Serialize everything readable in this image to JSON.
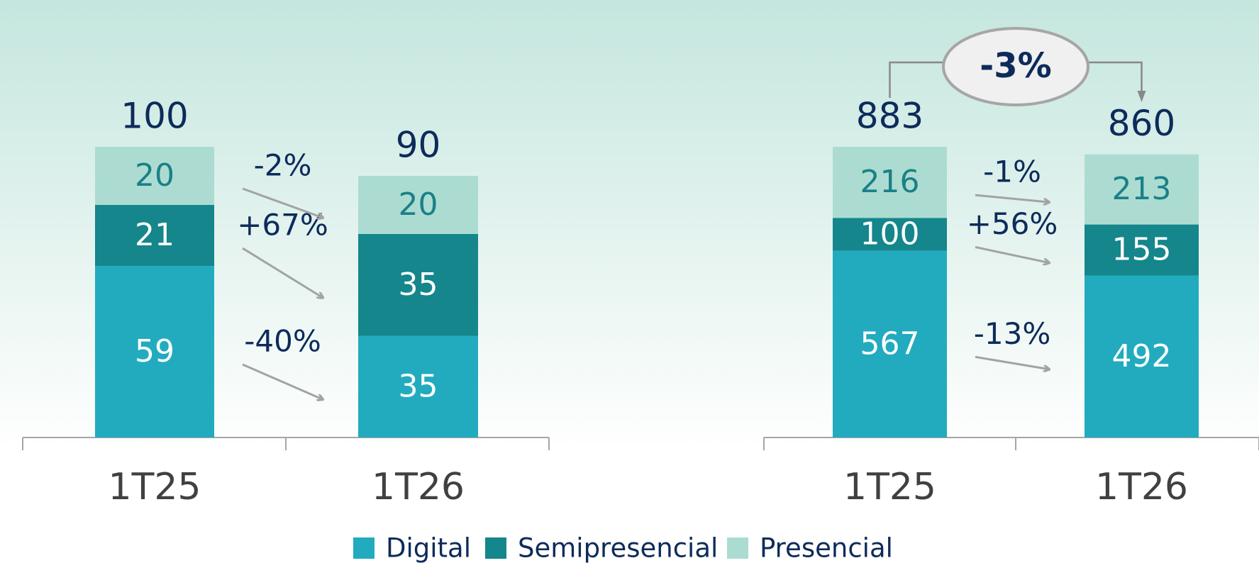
{
  "chart_data": [
    {
      "type": "bar",
      "stacked": true,
      "categories": [
        "1T25",
        "1T26"
      ],
      "series": [
        {
          "name": "Digital",
          "color": "#22abbf",
          "values": [
            59,
            35
          ]
        },
        {
          "name": "Semipresencial",
          "color": "#14868c",
          "values": [
            21,
            35
          ]
        },
        {
          "name": "Presencial",
          "color": "#acdcd1",
          "values": [
            20,
            20
          ]
        }
      ],
      "totals": [
        100,
        90
      ],
      "changes": [
        "-40%",
        "+67%",
        "-2%"
      ]
    },
    {
      "type": "bar",
      "stacked": true,
      "categories": [
        "1T25",
        "1T26"
      ],
      "series": [
        {
          "color": "#22abbf",
          "values": [
            567,
            492
          ]
        },
        {
          "color": "#14868c",
          "values": [
            100,
            155
          ]
        },
        {
          "color": "#acdcd1",
          "values": [
            216,
            213
          ]
        }
      ],
      "totals": [
        883,
        860
      ],
      "changes": [
        "-13%",
        "+56%",
        "-1%"
      ],
      "overall_change": "-3%"
    }
  ]
}
